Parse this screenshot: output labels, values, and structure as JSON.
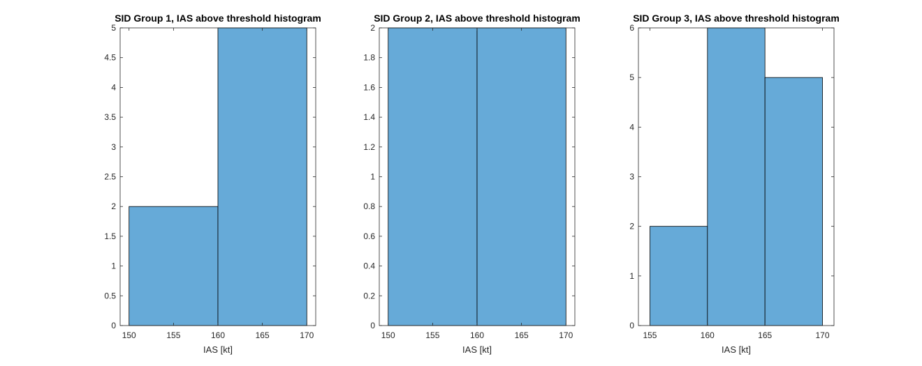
{
  "chart_data": [
    {
      "type": "bar",
      "title": "SID Group 1, IAS above threshold histogram",
      "xlabel": "IAS [kt]",
      "ylabel": "",
      "xlim": [
        149,
        171
      ],
      "ylim": [
        0,
        5
      ],
      "xticks": [
        150,
        155,
        160,
        165,
        170
      ],
      "yticks": [
        0,
        0.5,
        1,
        1.5,
        2,
        2.5,
        3,
        3.5,
        4,
        4.5,
        5
      ],
      "bins": [
        {
          "x0": 150,
          "x1": 160,
          "count": 2
        },
        {
          "x0": 160,
          "x1": 170,
          "count": 5
        }
      ],
      "bar_color": "#66aad8",
      "grid": false
    },
    {
      "type": "bar",
      "title": "SID Group 2, IAS above threshold histogram",
      "xlabel": "IAS [kt]",
      "ylabel": "",
      "xlim": [
        149,
        171
      ],
      "ylim": [
        0,
        2
      ],
      "xticks": [
        150,
        155,
        160,
        165,
        170
      ],
      "yticks": [
        0,
        0.2,
        0.4,
        0.6,
        0.8,
        1,
        1.2,
        1.4,
        1.6,
        1.8,
        2
      ],
      "bins": [
        {
          "x0": 150,
          "x1": 160,
          "count": 2
        },
        {
          "x0": 160,
          "x1": 170,
          "count": 2
        }
      ],
      "bar_color": "#66aad8",
      "grid": false
    },
    {
      "type": "bar",
      "title": "SID Group 3, IAS above threshold histogram",
      "xlabel": "IAS [kt]",
      "ylabel": "",
      "xlim": [
        154,
        171
      ],
      "ylim": [
        0,
        6
      ],
      "xticks": [
        155,
        160,
        165,
        170
      ],
      "yticks": [
        0,
        1,
        2,
        3,
        4,
        5,
        6
      ],
      "bins": [
        {
          "x0": 155,
          "x1": 160,
          "count": 2
        },
        {
          "x0": 160,
          "x1": 165,
          "count": 6
        },
        {
          "x0": 165,
          "x1": 170,
          "count": 5
        }
      ],
      "bar_color": "#66aad8",
      "grid": false
    }
  ]
}
